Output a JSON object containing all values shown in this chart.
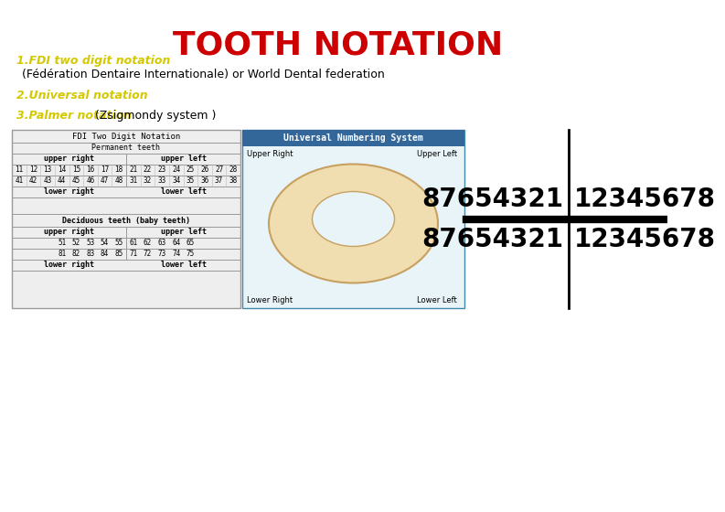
{
  "title": "TOOTH NOTATION",
  "title_color": "#cc0000",
  "title_fontsize": 26,
  "line1_yellow": "1.FDI two digit notation",
  "line2_black": "   (Fédération Dentaire Internationale) or World Dental federation",
  "line3_yellow": "2.Universal notation",
  "line4_yellow": "3.Palmer notation ",
  "line4_black": "(Zsigmondy system )",
  "yellow_color": "#d4c800",
  "black_color": "#000000",
  "bg_color": "#ffffff",
  "fdi_table_title": "FDI Two Digit Notation",
  "permanent_teeth": "Permanent teeth",
  "upper_right": "upper right",
  "upper_left": "upper left",
  "lower_right": "lower right",
  "lower_left": "lower left",
  "deciduous_teeth": "Deciduous teeth (baby teeth)",
  "perm_upper_right": [
    "18",
    "17",
    "16",
    "15",
    "14",
    "13",
    "12",
    "11"
  ],
  "perm_upper_left": [
    "21",
    "22",
    "23",
    "24",
    "25",
    "26",
    "27",
    "28"
  ],
  "perm_lower_right": [
    "48",
    "47",
    "46",
    "45",
    "44",
    "43",
    "42",
    "41"
  ],
  "perm_lower_left": [
    "31",
    "32",
    "33",
    "34",
    "35",
    "36",
    "37",
    "38"
  ],
  "dec_upper_right": [
    "55",
    "54",
    "53",
    "52",
    "51"
  ],
  "dec_upper_left": [
    "61",
    "62",
    "63",
    "64",
    "65"
  ],
  "dec_lower_right": [
    "85",
    "84",
    "83",
    "82",
    "81"
  ],
  "dec_lower_left": [
    "71",
    "72",
    "73",
    "74",
    "75"
  ],
  "palmer_upper_left": "87654321",
  "palmer_upper_right": "12345678",
  "palmer_lower_left": "87654321",
  "palmer_lower_right": "12345678",
  "palmer_fontsize": 20,
  "table_bg": "#eeeeee",
  "table_border": "#999999",
  "univ_bg": "#e8f4f8",
  "univ_header_bg": "#336699",
  "univ_header_color": "#ffffff"
}
